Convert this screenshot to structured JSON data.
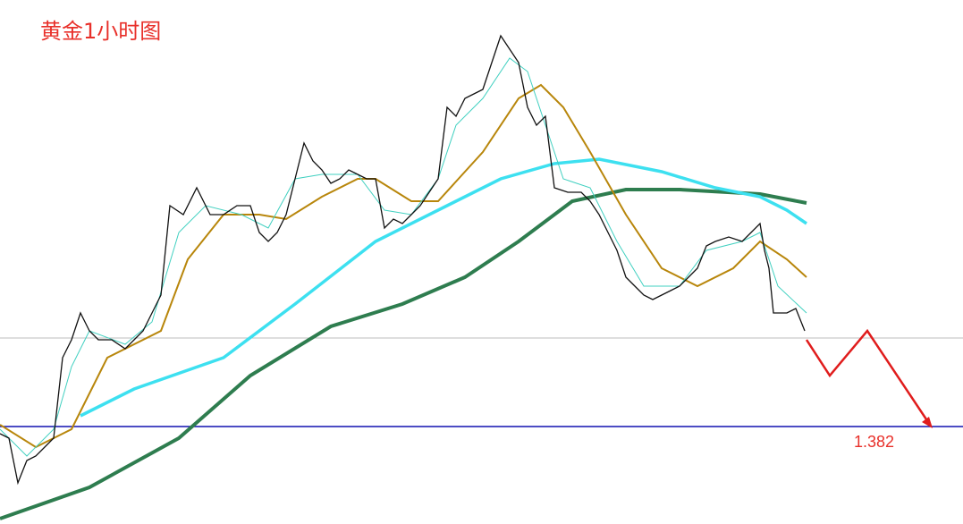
{
  "header": {
    "title": "黄金1小时图"
  },
  "annotations": {
    "level_label": "1.382"
  }
}
